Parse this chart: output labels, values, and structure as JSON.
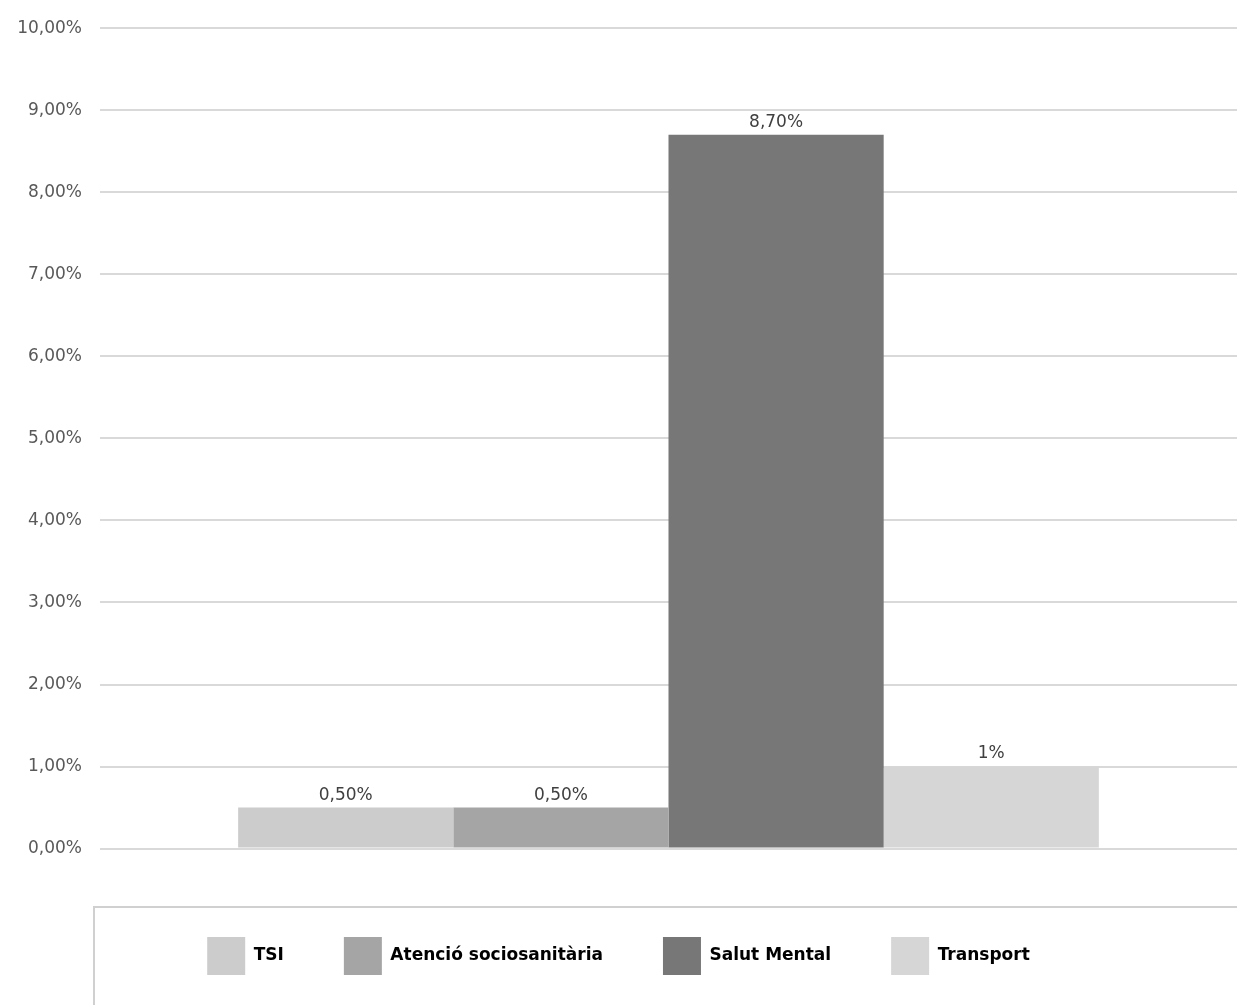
{
  "chart_data": {
    "type": "bar",
    "categories": [
      null
    ],
    "series": [
      {
        "name": "TSI",
        "color": "#cccccc",
        "values": [
          0.5
        ],
        "value_labels": [
          "0,50%"
        ]
      },
      {
        "name": "Atenció sociosanitària",
        "color": "#a5a5a5",
        "values": [
          0.5
        ],
        "value_labels": [
          "0,50%"
        ]
      },
      {
        "name": "Salut Mental",
        "color": "#777777",
        "values": [
          8.7
        ],
        "value_labels": [
          "8,70%"
        ]
      },
      {
        "name": "Transport",
        "color": "#d6d6d6",
        "values": [
          1
        ],
        "value_labels": [
          "1%"
        ]
      }
    ],
    "ylim": [
      0,
      10
    ],
    "yticks": [
      {
        "value": 0,
        "label": "0,00%"
      },
      {
        "value": 1,
        "label": "1,00%"
      },
      {
        "value": 2,
        "label": "2,00%"
      },
      {
        "value": 3,
        "label": "3,00%"
      },
      {
        "value": 4,
        "label": "4,00%"
      },
      {
        "value": 5,
        "label": "5,00%"
      },
      {
        "value": 6,
        "label": "6,00%"
      },
      {
        "value": 7,
        "label": "7,00%"
      },
      {
        "value": 8,
        "label": "8,00%"
      },
      {
        "value": 9,
        "label": "9,00%"
      },
      {
        "value": 10,
        "label": "10,00%"
      }
    ],
    "grid": "y",
    "legend": "bottom"
  }
}
